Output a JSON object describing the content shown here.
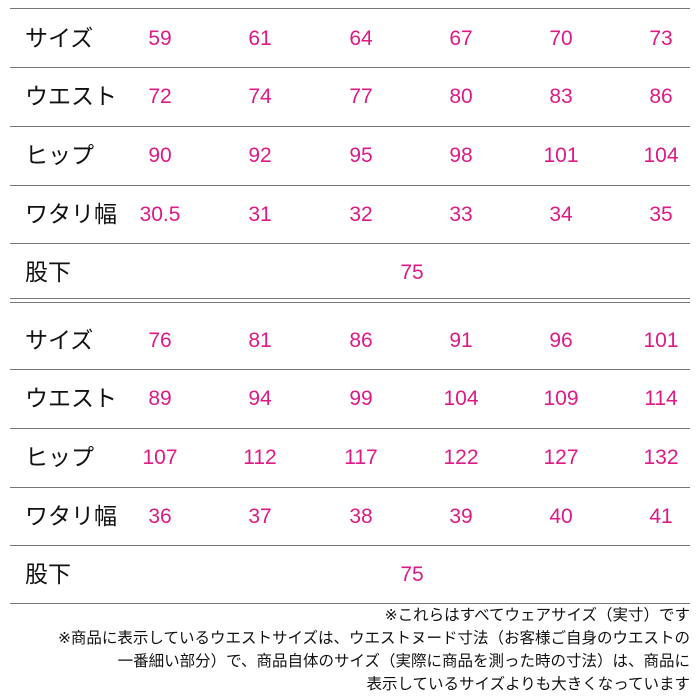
{
  "table1": {
    "rows": [
      {
        "label": "サイズ",
        "values": [
          "59",
          "61",
          "64",
          "67",
          "70",
          "73"
        ]
      },
      {
        "label": "ウエスト",
        "values": [
          "72",
          "74",
          "77",
          "80",
          "83",
          "86"
        ]
      },
      {
        "label": "ヒップ",
        "values": [
          "90",
          "92",
          "95",
          "98",
          "101",
          "104"
        ]
      },
      {
        "label": "ワタリ幅",
        "values": [
          "30.5",
          "31",
          "32",
          "33",
          "34",
          "35"
        ]
      }
    ],
    "inseam": {
      "label": "股下",
      "value": "75"
    }
  },
  "table2": {
    "rows": [
      {
        "label": "サイズ",
        "values": [
          "76",
          "81",
          "86",
          "91",
          "96",
          "101"
        ]
      },
      {
        "label": "ウエスト",
        "values": [
          "89",
          "94",
          "99",
          "104",
          "109",
          "114"
        ]
      },
      {
        "label": "ヒップ",
        "values": [
          "107",
          "112",
          "117",
          "122",
          "127",
          "132"
        ]
      },
      {
        "label": "ワタリ幅",
        "values": [
          "36",
          "37",
          "38",
          "39",
          "40",
          "41"
        ]
      }
    ],
    "inseam": {
      "label": "股下",
      "value": "75"
    }
  },
  "notes": [
    "※これらはすべてウェアサイズ（実寸）です",
    "※商品に表示しているウエストサイズは、ウエストヌード寸法（お客様ご自身のウエストの",
    "一番細い部分）で、商品自体のサイズ（実際に商品を測った時の寸法）は、商品に",
    "表示しているサイズよりも大きくなっています"
  ],
  "colors": {
    "value_color": "#dd1a85",
    "label_color": "#111111",
    "rule_color": "#777777"
  }
}
